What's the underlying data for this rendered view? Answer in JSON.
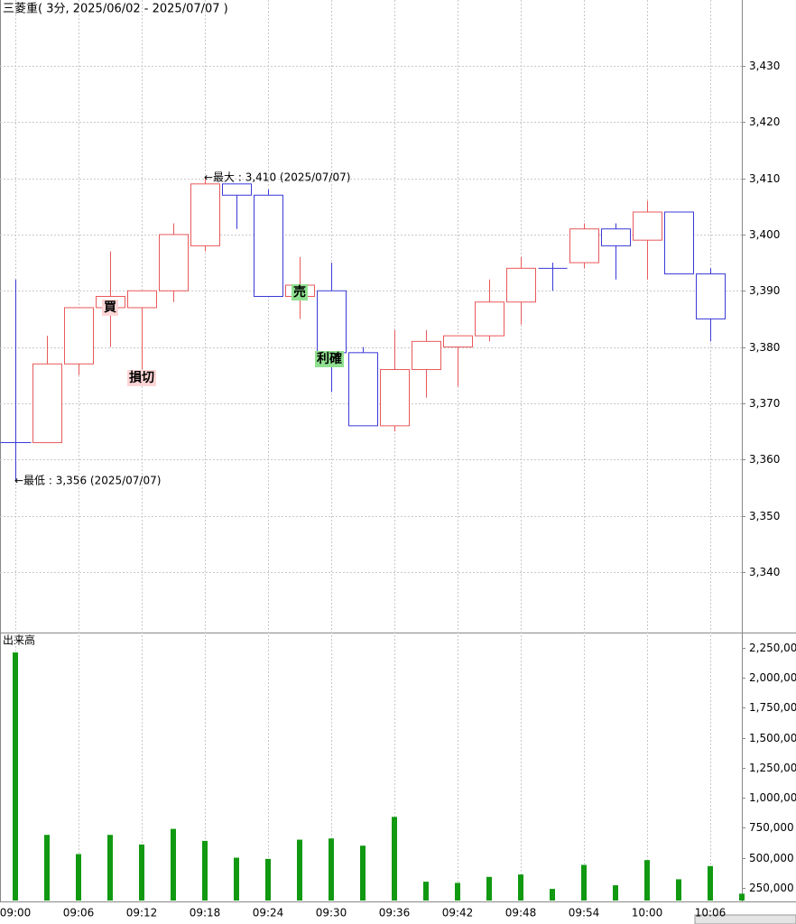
{
  "chart_data": [
    {
      "type": "candlestick",
      "title": "三菱重( 3分, 2025/06/02 - 2025/07/07 )",
      "open": [
        3363,
        3363,
        3377,
        3387,
        3387,
        3390,
        3398,
        3409,
        3407,
        3389,
        3390,
        3379,
        3366,
        3376,
        3380,
        3382,
        3388,
        3394,
        3395,
        3401,
        3399,
        3404,
        3393,
        null
      ],
      "high": [
        3392,
        3382,
        3387,
        3397,
        3390,
        3402,
        3410,
        3409,
        3408,
        3396,
        3395,
        3380,
        3383,
        3383,
        3382,
        3392,
        3396,
        3395,
        3402,
        3402,
        3406,
        3404,
        3394,
        null
      ],
      "low": [
        3356,
        3363,
        3375,
        3380,
        3376,
        3388,
        3397,
        3401,
        3389,
        3385,
        3372,
        3366,
        3365,
        3371,
        3373,
        3381,
        3384,
        3390,
        3394,
        3392,
        3392,
        3393,
        3381,
        null
      ],
      "close": [
        3363,
        3377,
        3387,
        3389,
        3390,
        3400,
        3409,
        3407,
        3389,
        3391,
        3379,
        3366,
        3376,
        3381,
        3382,
        3388,
        3394,
        3394,
        3401,
        3398,
        3404,
        3393,
        3385,
        null
      ],
      "up_color": "#e8595a",
      "down_color": "#3a3ad8",
      "ylim": [
        3329.4,
        3441.7
      ],
      "yticks": [
        {
          "value": 3340,
          "label": "3,340"
        },
        {
          "value": 3350,
          "label": "3,350"
        },
        {
          "value": 3360,
          "label": "3,360"
        },
        {
          "value": 3370,
          "label": "3,370"
        },
        {
          "value": 3380,
          "label": "3,380"
        },
        {
          "value": 3390,
          "label": "3,390"
        },
        {
          "value": 3400,
          "label": "3,400"
        },
        {
          "value": 3410,
          "label": "3,410"
        },
        {
          "value": 3420,
          "label": "3,420"
        },
        {
          "value": 3430,
          "label": "3,430"
        }
      ],
      "grid": true,
      "annotations": [
        "←最大 : 3,410 (2025/07/07)",
        "←最低 : 3,356 (2025/07/07)"
      ],
      "signals": [
        {
          "text": "買",
          "kind": "entry"
        },
        {
          "text": "損切",
          "kind": "entry"
        },
        {
          "text": "売",
          "kind": "exit"
        },
        {
          "text": "利確",
          "kind": "exit"
        }
      ]
    },
    {
      "type": "bar",
      "title": "出来高",
      "categories": [
        "09:00",
        null,
        "09:06",
        null,
        "09:12",
        null,
        "09:18",
        null,
        "09:24",
        null,
        "09:30",
        null,
        "09:36",
        null,
        "09:42",
        null,
        "09:48",
        null,
        "09:54",
        null,
        "10:00",
        null,
        "10:06",
        null
      ],
      "values": [
        2210000,
        690000,
        530000,
        690000,
        610000,
        740000,
        640000,
        500000,
        490000,
        650000,
        660000,
        600000,
        840000,
        300000,
        290000,
        340000,
        360000,
        240000,
        440000,
        270000,
        480000,
        320000,
        430000,
        200000
      ],
      "color": "#119911",
      "ylim": [
        142900,
        2360900
      ],
      "yticks": [
        {
          "value": 250000,
          "label": "250,000"
        },
        {
          "value": 500000,
          "label": "500,000"
        },
        {
          "value": 750000,
          "label": "750,000"
        },
        {
          "value": 1000000,
          "label": "1,000,000"
        },
        {
          "value": 1250000,
          "label": "1,250,000"
        },
        {
          "value": 1500000,
          "label": "1,500,000"
        },
        {
          "value": 1750000,
          "label": "1,750,000"
        },
        {
          "value": 2000000,
          "label": "2,000,000"
        },
        {
          "value": 2250000,
          "label": "2,250,000"
        }
      ]
    }
  ]
}
